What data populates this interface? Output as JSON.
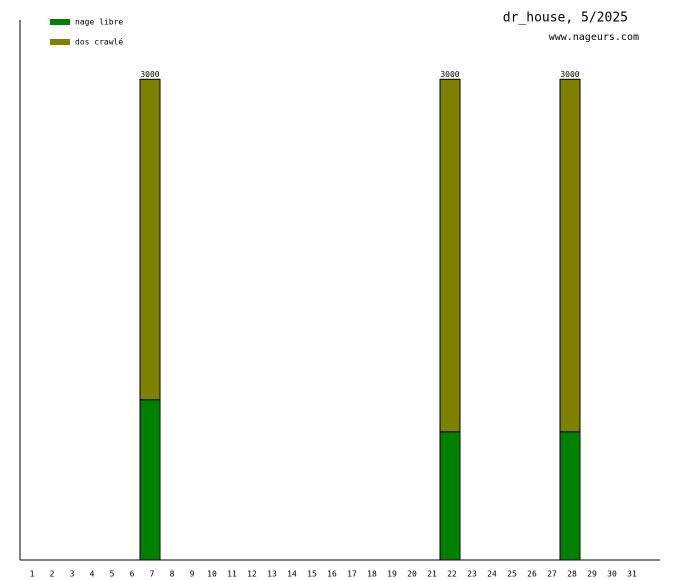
{
  "chart_data": {
    "type": "bar",
    "stacked": true,
    "title": "dr_house, 5/2025",
    "subtitle": "www.nageurs.com",
    "categories": [
      "1",
      "2",
      "3",
      "4",
      "5",
      "6",
      "7",
      "8",
      "9",
      "10",
      "11",
      "12",
      "13",
      "14",
      "15",
      "16",
      "17",
      "18",
      "19",
      "20",
      "21",
      "22",
      "23",
      "24",
      "25",
      "26",
      "27",
      "28",
      "29",
      "30",
      "31"
    ],
    "series": [
      {
        "name": "nage libre",
        "color": "#008000",
        "values": [
          0,
          0,
          0,
          0,
          0,
          0,
          1000,
          0,
          0,
          0,
          0,
          0,
          0,
          0,
          0,
          0,
          0,
          0,
          0,
          0,
          0,
          800,
          0,
          0,
          0,
          0,
          0,
          800,
          0,
          0,
          0
        ]
      },
      {
        "name": "dos crawlé",
        "color": "#808000",
        "values": [
          0,
          0,
          0,
          0,
          0,
          0,
          2000,
          0,
          0,
          0,
          0,
          0,
          0,
          0,
          0,
          0,
          0,
          0,
          0,
          0,
          0,
          2200,
          0,
          0,
          0,
          0,
          0,
          2200,
          0,
          0,
          0
        ]
      }
    ],
    "totals": [
      null,
      null,
      null,
      null,
      null,
      null,
      3000,
      null,
      null,
      null,
      null,
      null,
      null,
      null,
      null,
      null,
      null,
      null,
      null,
      null,
      null,
      3000,
      null,
      null,
      null,
      null,
      null,
      3000,
      null,
      null,
      null
    ],
    "ylim": [
      0,
      3370
    ]
  }
}
